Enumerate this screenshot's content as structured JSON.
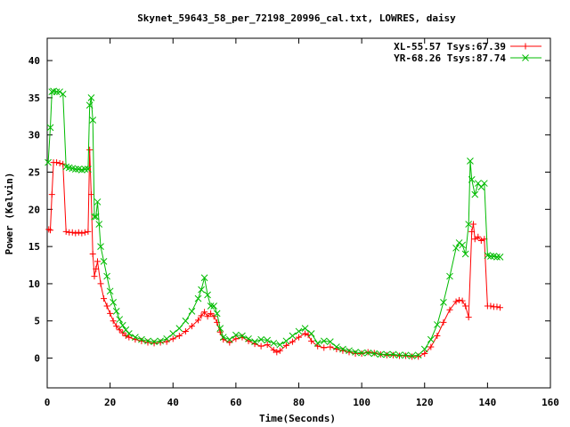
{
  "chart_data": {
    "type": "line",
    "title": "Skynet_59643_58_per_72198_20996_cal.txt, LOWRES, daisy",
    "xlabel": "Time(Seconds)",
    "ylabel": "Power (Kelvin)",
    "xlim": [
      0,
      160
    ],
    "ylim": [
      -4,
      43
    ],
    "xticks": [
      0,
      20,
      40,
      60,
      80,
      100,
      120,
      140,
      160
    ],
    "yticks": [
      0,
      5,
      10,
      15,
      20,
      25,
      30,
      35,
      40
    ],
    "grid": false,
    "legend_position": "top-right",
    "series": [
      {
        "name": "XL-55.57 Tsys:67.39",
        "color": "#ff0000",
        "marker": "plus",
        "points": [
          [
            0.5,
            17.3
          ],
          [
            1,
            17.2
          ],
          [
            1.5,
            22
          ],
          [
            2,
            26.3
          ],
          [
            3,
            26.3
          ],
          [
            4,
            26.2
          ],
          [
            5,
            26.1
          ],
          [
            6,
            17
          ],
          [
            7,
            16.9
          ],
          [
            8,
            16.9
          ],
          [
            9,
            16.8
          ],
          [
            10,
            16.9
          ],
          [
            11,
            16.8
          ],
          [
            12,
            16.9
          ],
          [
            13,
            17
          ],
          [
            13.5,
            28
          ],
          [
            14,
            22
          ],
          [
            14.5,
            14
          ],
          [
            15,
            11
          ],
          [
            15.5,
            12
          ],
          [
            16,
            13
          ],
          [
            17,
            10
          ],
          [
            18,
            8
          ],
          [
            19,
            7
          ],
          [
            20,
            6
          ],
          [
            21,
            5
          ],
          [
            22,
            4.3
          ],
          [
            23,
            3.8
          ],
          [
            24,
            3.4
          ],
          [
            25,
            3
          ],
          [
            26,
            2.8
          ],
          [
            28,
            2.5
          ],
          [
            30,
            2.3
          ],
          [
            32,
            2.1
          ],
          [
            34,
            2
          ],
          [
            36,
            2.1
          ],
          [
            38,
            2.2
          ],
          [
            40,
            2.6
          ],
          [
            42,
            3
          ],
          [
            44,
            3.6
          ],
          [
            46,
            4.3
          ],
          [
            48,
            5.1
          ],
          [
            49,
            5.7
          ],
          [
            50,
            6.2
          ],
          [
            51,
            5.6
          ],
          [
            52,
            6
          ],
          [
            53,
            5.6
          ],
          [
            54,
            4.8
          ],
          [
            55,
            3.5
          ],
          [
            56,
            2.5
          ],
          [
            58,
            2.1
          ],
          [
            60,
            2.6
          ],
          [
            62,
            2.8
          ],
          [
            64,
            2.3
          ],
          [
            66,
            1.9
          ],
          [
            68,
            1.6
          ],
          [
            70,
            1.8
          ],
          [
            72,
            1.1
          ],
          [
            73,
            0.8
          ],
          [
            74,
            1
          ],
          [
            76,
            1.7
          ],
          [
            78,
            2.2
          ],
          [
            80,
            2.8
          ],
          [
            82,
            3.3
          ],
          [
            83,
            3.1
          ],
          [
            84,
            2.3
          ],
          [
            86,
            1.6
          ],
          [
            88,
            1.4
          ],
          [
            90,
            1.5
          ],
          [
            92,
            1.2
          ],
          [
            94,
            1
          ],
          [
            96,
            0.8
          ],
          [
            98,
            0.6
          ],
          [
            100,
            0.6
          ],
          [
            102,
            0.8
          ],
          [
            104,
            0.7
          ],
          [
            106,
            0.5
          ],
          [
            108,
            0.4
          ],
          [
            110,
            0.4
          ],
          [
            112,
            0.3
          ],
          [
            114,
            0.3
          ],
          [
            116,
            0.2
          ],
          [
            118,
            0.2
          ],
          [
            120,
            0.6
          ],
          [
            122,
            1.5
          ],
          [
            124,
            3
          ],
          [
            126,
            4.8
          ],
          [
            128,
            6.5
          ],
          [
            130,
            7.6
          ],
          [
            131,
            7.8
          ],
          [
            132,
            7.7
          ],
          [
            133,
            7
          ],
          [
            134,
            5.5
          ],
          [
            135,
            17
          ],
          [
            135.5,
            18
          ],
          [
            136,
            16
          ],
          [
            137,
            16.3
          ],
          [
            138,
            15.8
          ],
          [
            139,
            16
          ],
          [
            140,
            7
          ],
          [
            141,
            7
          ],
          [
            142,
            6.9
          ],
          [
            143,
            6.9
          ],
          [
            144,
            6.8
          ]
        ]
      },
      {
        "name": "YR-68.26 Tsys:87.74",
        "color": "#00bb00",
        "marker": "cross",
        "points": [
          [
            0.3,
            26.3
          ],
          [
            1,
            31
          ],
          [
            1.5,
            35.8
          ],
          [
            2,
            35.9
          ],
          [
            3,
            35.8
          ],
          [
            4,
            35.8
          ],
          [
            5,
            35.5
          ],
          [
            6,
            25.7
          ],
          [
            7,
            25.6
          ],
          [
            8,
            25.5
          ],
          [
            9,
            25.4
          ],
          [
            10,
            25.4
          ],
          [
            11,
            25.3
          ],
          [
            12,
            25.4
          ],
          [
            13,
            25.4
          ],
          [
            13.5,
            34
          ],
          [
            14,
            35
          ],
          [
            14.5,
            32
          ],
          [
            15,
            19
          ],
          [
            15.5,
            19
          ],
          [
            16,
            21
          ],
          [
            16.5,
            18
          ],
          [
            17,
            15
          ],
          [
            18,
            13
          ],
          [
            19,
            11
          ],
          [
            20,
            9
          ],
          [
            21,
            7.5
          ],
          [
            22,
            6.3
          ],
          [
            23,
            5.2
          ],
          [
            24,
            4.4
          ],
          [
            25,
            3.8
          ],
          [
            26,
            3.3
          ],
          [
            28,
            2.8
          ],
          [
            30,
            2.5
          ],
          [
            32,
            2.3
          ],
          [
            34,
            2.2
          ],
          [
            36,
            2.3
          ],
          [
            38,
            2.6
          ],
          [
            40,
            3.3
          ],
          [
            42,
            4
          ],
          [
            44,
            5
          ],
          [
            46,
            6.3
          ],
          [
            48,
            8
          ],
          [
            49,
            9.2
          ],
          [
            50,
            10.8
          ],
          [
            51,
            8.5
          ],
          [
            52,
            7
          ],
          [
            53,
            7
          ],
          [
            54,
            6
          ],
          [
            55,
            4
          ],
          [
            56,
            2.8
          ],
          [
            58,
            2.5
          ],
          [
            60,
            3.1
          ],
          [
            62,
            3
          ],
          [
            64,
            2.6
          ],
          [
            66,
            2.2
          ],
          [
            68,
            2.5
          ],
          [
            70,
            2.4
          ],
          [
            72,
            2
          ],
          [
            74,
            1.8
          ],
          [
            76,
            2.3
          ],
          [
            78,
            3
          ],
          [
            80,
            3.6
          ],
          [
            82,
            4
          ],
          [
            84,
            3.3
          ],
          [
            86,
            2
          ],
          [
            88,
            2.3
          ],
          [
            90,
            2.2
          ],
          [
            92,
            1.5
          ],
          [
            94,
            1.2
          ],
          [
            96,
            1
          ],
          [
            98,
            0.8
          ],
          [
            100,
            0.7
          ],
          [
            102,
            0.7
          ],
          [
            104,
            0.6
          ],
          [
            106,
            0.5
          ],
          [
            108,
            0.5
          ],
          [
            110,
            0.5
          ],
          [
            112,
            0.4
          ],
          [
            114,
            0.4
          ],
          [
            116,
            0.3
          ],
          [
            118,
            0.4
          ],
          [
            120,
            1.2
          ],
          [
            122,
            2.5
          ],
          [
            124,
            4.5
          ],
          [
            126,
            7.5
          ],
          [
            128,
            11
          ],
          [
            130,
            14.8
          ],
          [
            131,
            15.5
          ],
          [
            132,
            15.2
          ],
          [
            133,
            14
          ],
          [
            134,
            18
          ],
          [
            134.5,
            26.5
          ],
          [
            135,
            24
          ],
          [
            136,
            22
          ],
          [
            137,
            23.5
          ],
          [
            138,
            23
          ],
          [
            139,
            23.5
          ],
          [
            140,
            13.8
          ],
          [
            141,
            13.7
          ],
          [
            142,
            13.7
          ],
          [
            143,
            13.6
          ],
          [
            144,
            13.6
          ]
        ]
      }
    ]
  }
}
